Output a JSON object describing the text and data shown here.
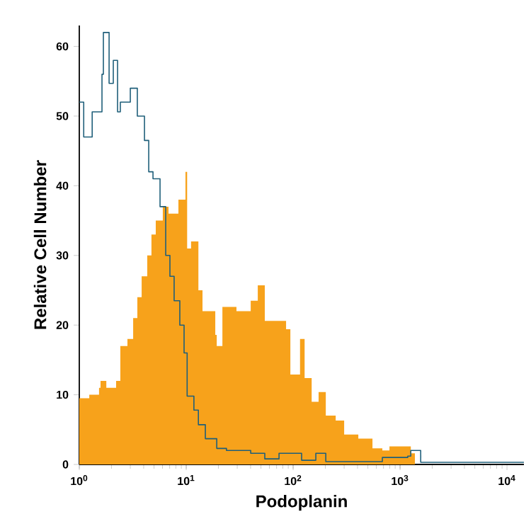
{
  "chart_data": {
    "type": "step",
    "xlabel": "Podoplanin",
    "ylabel": "Relative Cell Number",
    "log": "x",
    "xlim": [
      1,
      14400
    ],
    "ylim": [
      0,
      63
    ],
    "xticks": [
      {
        "value": 1,
        "label": "10$^{0}$"
      },
      {
        "value": 10,
        "label": "10$^{1}$"
      },
      {
        "value": 100,
        "label": "10$^{2}$"
      },
      {
        "value": 1000,
        "label": "10$^{3}$"
      },
      {
        "value": 10000,
        "label": "10$^{4}$"
      }
    ],
    "yticks": [
      0,
      10,
      20,
      30,
      40,
      50,
      60
    ],
    "grid": false,
    "series": [
      {
        "type": "area",
        "color": "#f7a21b",
        "x": [
          1,
          1.24,
          1.53,
          1.58,
          1.79,
          2.21,
          2.42,
          2.82,
          3.19,
          3.49,
          3.83,
          4.32,
          4.73,
          5.19,
          6.04,
          6.83,
          8.45,
          9.84,
          10.2,
          11.1,
          13.0,
          14.2,
          18.7,
          19.3,
          21.8,
          29.5,
          40.1,
          46.7,
          54.3,
          73.8,
          85.9,
          94.2,
          116,
          128,
          149,
          173,
          202,
          250,
          300,
          371,
          407,
          552,
          683,
          796,
          1020,
          1260,
          1380
        ],
        "values": [
          9.5,
          10,
          11,
          12,
          11,
          12,
          17,
          18,
          21,
          24,
          27,
          30,
          33,
          35,
          37,
          36,
          38,
          42,
          31,
          32,
          25,
          22,
          18.6,
          17,
          22.6,
          22,
          23.5,
          25.7,
          20.6,
          20.6,
          19.4,
          12.9,
          18,
          12.4,
          9,
          10.4,
          7,
          6.3,
          4.3,
          4.3,
          3.7,
          2.3,
          2,
          2.6,
          2.6,
          1.6,
          0
        ]
      },
      {
        "color": "#1f5f7a",
        "x": [
          1,
          1.1,
          1.32,
          1.63,
          1.68,
          1.9,
          2.08,
          2.28,
          2.42,
          3.0,
          3.49,
          4.07,
          4.46,
          4.89,
          5.69,
          6.43,
          7.04,
          7.71,
          8.71,
          9.55,
          10.2,
          11.8,
          13.0,
          15.1,
          19.3,
          23.8,
          40.1,
          54.3,
          73.8,
          100,
          120,
          163,
          202,
          683,
          1180,
          1260,
          1560,
          14400
        ],
        "values": [
          52,
          47,
          50.6,
          56,
          62,
          54.7,
          58,
          50.6,
          52,
          54,
          50,
          46.5,
          42,
          41,
          37,
          30,
          27,
          23.5,
          20,
          16,
          9.8,
          7.8,
          5.7,
          3.7,
          2.3,
          2,
          1.6,
          0.8,
          1.6,
          1.6,
          0.6,
          1.6,
          0.4,
          1,
          1.2,
          2,
          0.3,
          0.3
        ]
      }
    ]
  }
}
